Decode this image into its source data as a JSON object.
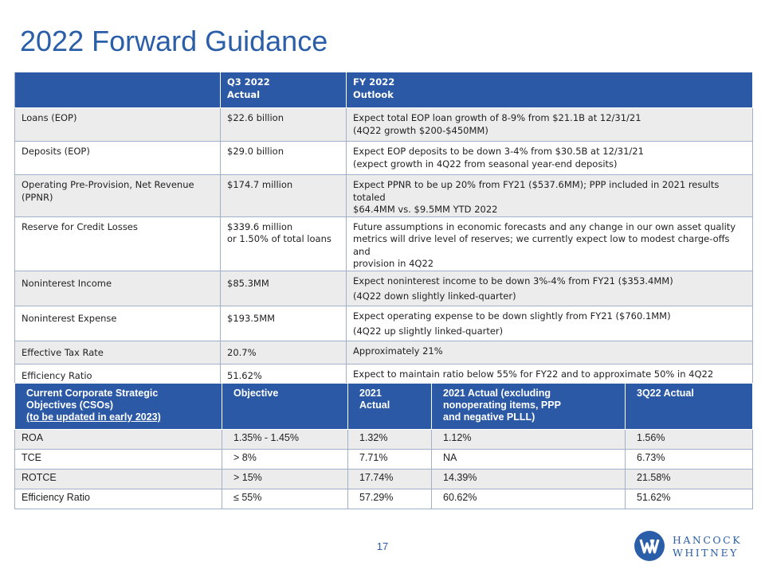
{
  "title": "2022 Forward Guidance",
  "guidance": {
    "headers": [
      [
        ""
      ],
      [
        "Q3 2022",
        "Actual"
      ],
      [
        "FY 2022",
        "Outlook"
      ]
    ],
    "rows": [
      {
        "metric": [
          "Loans (EOP)"
        ],
        "actual": [
          "$22.6 billion"
        ],
        "outlook": [
          "Expect total EOP loan growth of 8-9% from $21.1B at 12/31/21",
          "(4Q22 growth $200-$450MM)"
        ]
      },
      {
        "metric": [
          "Deposits (EOP)"
        ],
        "actual": [
          "$29.0 billion"
        ],
        "outlook": [
          "Expect EOP deposits to be down 3-4% from $30.5B at 12/31/21",
          "(expect growth in 4Q22 from seasonal year-end deposits)"
        ]
      },
      {
        "metric": [
          "Operating Pre-Provision, Net Revenue",
          "(PPNR)"
        ],
        "actual": [
          "$174.7 million"
        ],
        "outlook": [
          "Expect PPNR to be up 20% from FY21 ($537.6MM); PPP included in 2021 results totaled",
          "$64.4MM vs. $9.5MM YTD 2022"
        ]
      },
      {
        "metric": [
          "Reserve for Credit Losses"
        ],
        "actual": [
          "$339.6 million",
          "or 1.50% of total loans"
        ],
        "outlook": [
          "Future assumptions in economic forecasts and any change in our own asset quality",
          "metrics will drive level of reserves; we currently expect low to modest charge-offs and",
          "provision in 4Q22"
        ]
      },
      {
        "metric": [
          "Noninterest Income"
        ],
        "actual": [
          "$85.3MM"
        ],
        "outlook": [
          "Expect noninterest income to be down 3%-4% from FY21 ($353.4MM)",
          "(4Q22 down slightly linked-quarter)"
        ]
      },
      {
        "metric": [
          "Noninterest Expense"
        ],
        "actual": [
          "$193.5MM"
        ],
        "outlook": [
          "Expect operating expense to be down slightly from FY21 ($760.1MM)",
          "(4Q22 up slightly linked-quarter)"
        ]
      },
      {
        "metric": [
          "Effective Tax Rate"
        ],
        "actual": [
          "20.7%"
        ],
        "outlook": [
          "Approximately 21%"
        ]
      },
      {
        "metric": [
          "Efficiency Ratio"
        ],
        "actual": [
          "51.62%"
        ],
        "outlook": [
          "Expect to maintain ratio below 55% for FY22 and to approximate 50% in 4Q22"
        ]
      }
    ]
  },
  "cso": {
    "headers": [
      [
        "Current Corporate Strategic",
        "Objectives (CSOs)",
        "(to be updated in early 2023)"
      ],
      [
        "Objective"
      ],
      [
        "2021",
        "Actual"
      ],
      [
        "2021 Actual (excluding",
        "nonoperating items, PPP",
        "and negative PLLL)"
      ],
      [
        "3Q22 Actual"
      ]
    ],
    "rows": [
      [
        "ROA",
        "1.35% - 1.45%",
        "1.32%",
        "1.12%",
        "1.56%"
      ],
      [
        "TCE",
        "> 8%",
        "7.71%",
        "NA",
        "6.73%"
      ],
      [
        "ROTCE",
        "> 15%",
        "17.74%",
        "14.39%",
        "21.58%"
      ],
      [
        "Efficiency Ratio",
        "≤ 55%",
        "57.29%",
        "60.62%",
        "51.62%"
      ]
    ]
  },
  "page_number": "17",
  "logo": {
    "line1": "HANCOCK",
    "line2": "WHITNEY",
    "icon": "hancock-whitney-logo-icon"
  },
  "colors": {
    "accent": "#2a5ea8",
    "header_bg": "#2c59a5",
    "alt_row": "#ececec",
    "border": "#9fb0c8"
  }
}
